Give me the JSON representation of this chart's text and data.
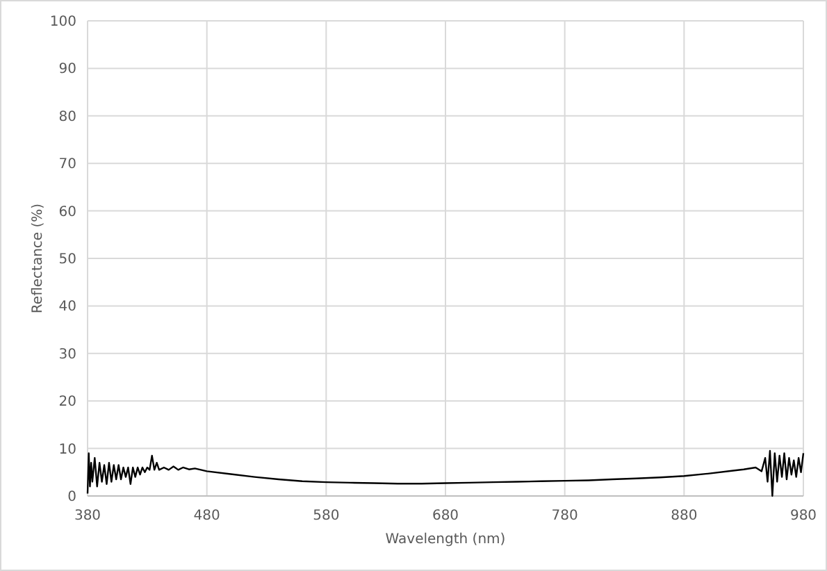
{
  "chart_data": {
    "type": "line",
    "xlabel": "Wavelength (nm)",
    "ylabel": "Reflectance (%)",
    "xlim": [
      380,
      980
    ],
    "xticks": [
      380,
      480,
      580,
      680,
      780,
      880,
      980
    ],
    "ylim": [
      0,
      100
    ],
    "yticks": [
      0,
      10,
      20,
      30,
      40,
      50,
      60,
      70,
      80,
      90,
      100
    ],
    "grid": true,
    "line_style": "solid",
    "series": [
      {
        "color": "#000000",
        "x": [
          380,
          381,
          382,
          383,
          384,
          386,
          388,
          390,
          392,
          394,
          396,
          398,
          400,
          402,
          404,
          406,
          408,
          410,
          412,
          414,
          416,
          418,
          420,
          422,
          424,
          426,
          428,
          430,
          432,
          434,
          436,
          438,
          440,
          444,
          448,
          452,
          456,
          460,
          465,
          470,
          480,
          500,
          520,
          540,
          560,
          580,
          600,
          620,
          640,
          660,
          680,
          700,
          720,
          740,
          760,
          780,
          800,
          820,
          840,
          860,
          880,
          900,
          920,
          930,
          940,
          945,
          948,
          950,
          952,
          954,
          956,
          958,
          960,
          962,
          964,
          966,
          968,
          970,
          972,
          974,
          976,
          978,
          980
        ],
        "values": [
          0.5,
          9,
          2,
          7,
          3,
          8,
          2,
          7,
          3,
          6.5,
          2.5,
          7,
          3,
          6.5,
          3.5,
          6.5,
          3.5,
          6,
          4,
          6,
          2.5,
          6,
          4,
          6,
          4.5,
          6,
          5,
          6,
          5.5,
          8.5,
          5.5,
          7,
          5.5,
          6,
          5.5,
          6.2,
          5.5,
          6,
          5.6,
          5.8,
          5.2,
          4.6,
          4,
          3.5,
          3.1,
          2.9,
          2.8,
          2.7,
          2.6,
          2.6,
          2.7,
          2.8,
          2.9,
          3,
          3.1,
          3.2,
          3.3,
          3.5,
          3.7,
          3.9,
          4.2,
          4.7,
          5.3,
          5.6,
          6,
          5.2,
          8,
          3,
          9.5,
          0,
          9,
          3,
          8.5,
          4,
          9,
          3.5,
          8,
          4.5,
          7.5,
          4,
          8,
          5,
          9
        ]
      }
    ]
  }
}
